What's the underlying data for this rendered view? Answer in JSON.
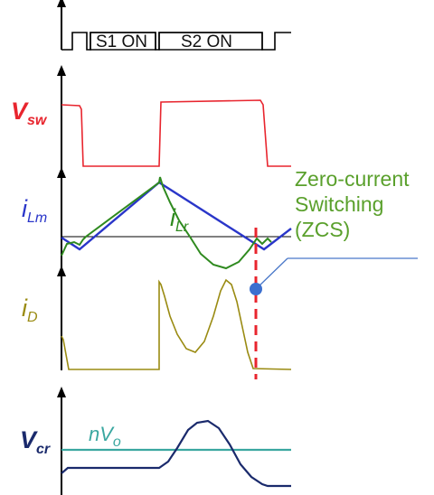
{
  "gate_states": {
    "s1_label": "S1 ON",
    "s2_label": "S2 ON"
  },
  "signals": {
    "vsw": {
      "symbol": "V",
      "subscript": "sw",
      "color": "#e8252e"
    },
    "ilm": {
      "symbol": "i",
      "subscript": "Lm",
      "color": "#2a36c9"
    },
    "ilr": {
      "symbol": "i",
      "subscript": "Lr",
      "color": "#2f8a1f"
    },
    "id": {
      "symbol": "i",
      "subscript": "D",
      "color": "#9a8b12"
    },
    "vcr": {
      "symbol": "V",
      "subscript": "cr",
      "color": "#1a2a6c"
    },
    "nvo": {
      "symbol": "nV",
      "subscript": "o",
      "color": "#3aa7a0"
    }
  },
  "annotation": {
    "line1": "Zero-current",
    "line2": "Switching",
    "line3": "(ZCS)",
    "color": "#5aa02c",
    "marker_color": "#3b6fcf",
    "cursor_color": "#e8252e"
  }
}
